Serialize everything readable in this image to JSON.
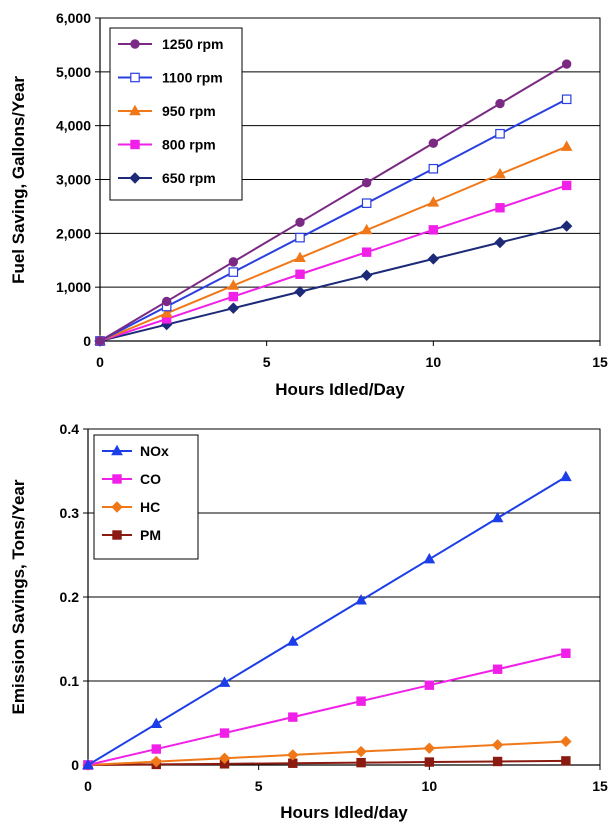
{
  "chart_data": [
    {
      "type": "line",
      "title": "",
      "xlabel": "Hours Idled/Day",
      "ylabel": "Fuel Saving, Gallons/Year",
      "xlim": [
        0,
        15
      ],
      "ylim": [
        0,
        6000
      ],
      "xticks": [
        "0",
        "5",
        "10",
        "15"
      ],
      "yticks": [
        "0",
        "1,000",
        "2,000",
        "3,000",
        "4,000",
        "5,000",
        "6,000"
      ],
      "grid": "horizontal",
      "legend_position": "top-left",
      "x": [
        0,
        2,
        4,
        6,
        8,
        10,
        12,
        14
      ],
      "series": [
        {
          "name": "1250 rpm",
          "color": "#7B2A84",
          "marker": "circle",
          "values": [
            0,
            735,
            1470,
            2205,
            2940,
            3675,
            4410,
            5145
          ]
        },
        {
          "name": "1100 rpm",
          "color": "#2A3FE0",
          "marker": "square-open",
          "values": [
            0,
            640,
            1280,
            1920,
            2560,
            3200,
            3850,
            4490
          ]
        },
        {
          "name": "950 rpm",
          "color": "#F07818",
          "marker": "triangle",
          "values": [
            0,
            515,
            1030,
            1545,
            2060,
            2575,
            3100,
            3610
          ]
        },
        {
          "name": "800 rpm",
          "color": "#F020E8",
          "marker": "square",
          "values": [
            0,
            410,
            825,
            1240,
            1650,
            2065,
            2475,
            2890
          ]
        },
        {
          "name": "650 rpm",
          "color": "#1C2A78",
          "marker": "diamond",
          "values": [
            0,
            305,
            610,
            915,
            1220,
            1525,
            1830,
            2135
          ]
        }
      ]
    },
    {
      "type": "line",
      "title": "",
      "xlabel": "Hours Idled/day",
      "ylabel": "Emission Savings, Tons/Year",
      "xlim": [
        0,
        15
      ],
      "ylim": [
        0,
        0.4
      ],
      "xticks": [
        "0",
        "5",
        "10",
        "15"
      ],
      "yticks": [
        "0",
        "0.1",
        "0.2",
        "0.3",
        "0.4"
      ],
      "grid": "horizontal",
      "legend_position": "top-left",
      "x": [
        0,
        2,
        4,
        6,
        8,
        10,
        12,
        14
      ],
      "series": [
        {
          "name": "NOx",
          "color": "#1C3EE8",
          "marker": "triangle",
          "values": [
            0,
            0.049,
            0.098,
            0.147,
            0.196,
            0.245,
            0.294,
            0.343
          ]
        },
        {
          "name": "CO",
          "color": "#F020E8",
          "marker": "square",
          "values": [
            0,
            0.019,
            0.038,
            0.057,
            0.076,
            0.095,
            0.114,
            0.133
          ]
        },
        {
          "name": "HC",
          "color": "#F07818",
          "marker": "diamond",
          "values": [
            0,
            0.004,
            0.008,
            0.012,
            0.016,
            0.02,
            0.024,
            0.028
          ]
        },
        {
          "name": "PM",
          "color": "#8B1A10",
          "marker": "square",
          "values": [
            0,
            0.0007,
            0.0014,
            0.0021,
            0.0028,
            0.0035,
            0.0042,
            0.0049
          ]
        }
      ]
    }
  ]
}
